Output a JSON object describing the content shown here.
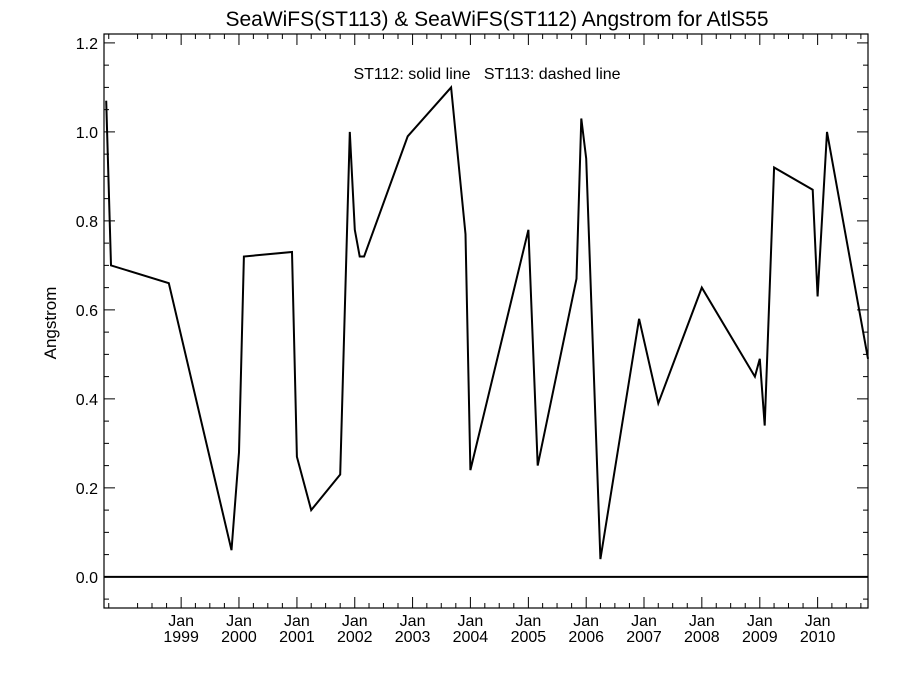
{
  "chart_data": {
    "type": "line",
    "title": "SeaWiFS(ST113) & SeaWiFS(ST112)  Angstrom for AtlS55",
    "annotation": "ST112: solid line   ST113: dashed line",
    "xlabel": "",
    "ylabel": "Angstrom",
    "ylim": [
      -0.07,
      1.22
    ],
    "xlim": [
      "1997-09-01",
      "2010-11-15"
    ],
    "yticks": [
      0.0,
      0.2,
      0.4,
      0.6,
      0.8,
      1.0,
      1.2
    ],
    "ytick_labels": [
      "0.0",
      "0.2",
      "0.4",
      "0.6",
      "0.8",
      "1.0",
      "1.2"
    ],
    "xticks": [
      "1999-01-01",
      "2000-01-01",
      "2001-01-01",
      "2002-01-01",
      "2003-01-01",
      "2004-01-01",
      "2005-01-01",
      "2006-01-01",
      "2007-01-01",
      "2008-01-01",
      "2009-01-01",
      "2010-01-01"
    ],
    "xtick_labels": [
      [
        "Jan",
        "1999"
      ],
      [
        "Jan",
        "2000"
      ],
      [
        "Jan",
        "2001"
      ],
      [
        "Jan",
        "2002"
      ],
      [
        "Jan",
        "2003"
      ],
      [
        "Jan",
        "2004"
      ],
      [
        "Jan",
        "2005"
      ],
      [
        "Jan",
        "2006"
      ],
      [
        "Jan",
        "2007"
      ],
      [
        "Jan",
        "2008"
      ],
      [
        "Jan",
        "2009"
      ],
      [
        "Jan",
        "2010"
      ]
    ],
    "reference_line": 0.0,
    "series": [
      {
        "name": "ST112",
        "style": "solid",
        "color": "#000000",
        "x": [
          "1997-09-15",
          "1997-10-15",
          "1998-10-15",
          "1999-11-15",
          "2000-01-01",
          "2000-02-01",
          "2000-12-01",
          "2001-01-01",
          "2001-04-01",
          "2001-10-01",
          "2001-12-01",
          "2002-01-01",
          "2002-02-01",
          "2002-03-01",
          "2002-12-01",
          "2003-09-01",
          "2003-12-01",
          "2004-01-01",
          "2005-01-01",
          "2005-03-01",
          "2005-11-01",
          "2005-12-01",
          "2006-01-01",
          "2006-04-01",
          "2006-12-01",
          "2007-04-01",
          "2008-01-01",
          "2008-12-01",
          "2009-01-01",
          "2009-02-01",
          "2009-04-01",
          "2009-12-01",
          "2010-01-01",
          "2010-03-01",
          "2010-11-15"
        ],
        "y": [
          1.07,
          0.7,
          0.66,
          0.06,
          0.28,
          0.72,
          0.73,
          0.27,
          0.15,
          0.23,
          1.0,
          0.78,
          0.72,
          0.72,
          0.99,
          1.1,
          0.77,
          0.24,
          0.78,
          0.25,
          0.67,
          1.03,
          0.94,
          0.04,
          0.58,
          0.39,
          0.65,
          0.45,
          0.49,
          0.34,
          0.92,
          0.87,
          0.63,
          1.0,
          0.49
        ]
      }
    ]
  }
}
